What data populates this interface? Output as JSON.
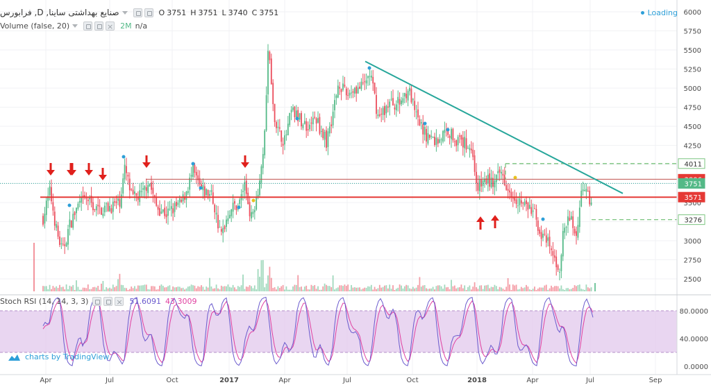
{
  "header": {
    "symbol_title": "صنایع بهداشتی ساینا, D, فرابورس",
    "ohlc": [
      {
        "k": "O",
        "v": "3751"
      },
      {
        "k": "H",
        "v": "3751"
      },
      {
        "k": "L",
        "v": "3740"
      },
      {
        "k": "C",
        "v": "3751"
      }
    ],
    "loading": "Loading"
  },
  "volume_legend": {
    "label": "Volume (false, 20)",
    "value": "2M",
    "na": "n/a"
  },
  "stoch_legend": {
    "label": "Stoch RSI (14, 14, 3, 3)",
    "k_value": "51.6091",
    "d_value": "43.3009"
  },
  "branding": "charts by TradingView",
  "colors": {
    "up": "#53b987",
    "down": "#eb4d5c",
    "h_red_line": "#e53935",
    "trend_line": "#26a69a",
    "dashed_green": "#7bc47f",
    "stoch_k": "#6a5acd",
    "stoch_d": "#e040a0",
    "stoch_band": "#e1c8ec",
    "arrow": "#e0201c",
    "dot_blue": "#2d9fd8",
    "dot_yellow": "#e8c21f"
  },
  "chart_data": {
    "type": "candlestick",
    "price_axis": {
      "min": 2250,
      "max": 6000,
      "ticks": [
        2500,
        2750,
        3000,
        3250,
        3500,
        3750,
        4000,
        4250,
        4500,
        4750,
        5000,
        5250,
        5500,
        5750,
        6000
      ]
    },
    "stoch_axis": {
      "ticks": [
        "80.0000",
        "40.0000",
        "0.0000"
      ],
      "band": [
        20,
        80
      ]
    },
    "time_axis": [
      "Apr",
      "Jul",
      "Oct",
      "2017",
      "Apr",
      "Jul",
      "Oct",
      "2018",
      "Apr",
      "Jul",
      "Sep"
    ],
    "price_tags": [
      {
        "value": 4011,
        "label": "4011",
        "style": "dashed-green"
      },
      {
        "value": 3806,
        "label": "3806",
        "style": "red"
      },
      {
        "value": 3751,
        "label": "3751",
        "style": "green"
      },
      {
        "value": 3571,
        "label": "3571",
        "style": "red"
      },
      {
        "value": 3276,
        "label": "3276",
        "style": "dashed-green"
      }
    ],
    "horizontal_lines": [
      {
        "value": 3806,
        "style": "thin-red"
      },
      {
        "value": 3571,
        "style": "thick-red"
      },
      {
        "value": 3751,
        "style": "dotted-teal"
      }
    ],
    "trend_line": {
      "from": {
        "date": "2017-07",
        "price": 5350
      },
      "to": {
        "date": "2018-08",
        "price": 3620
      }
    },
    "annotations": {
      "down_arrows": 7,
      "up_arrows": 2
    }
  }
}
